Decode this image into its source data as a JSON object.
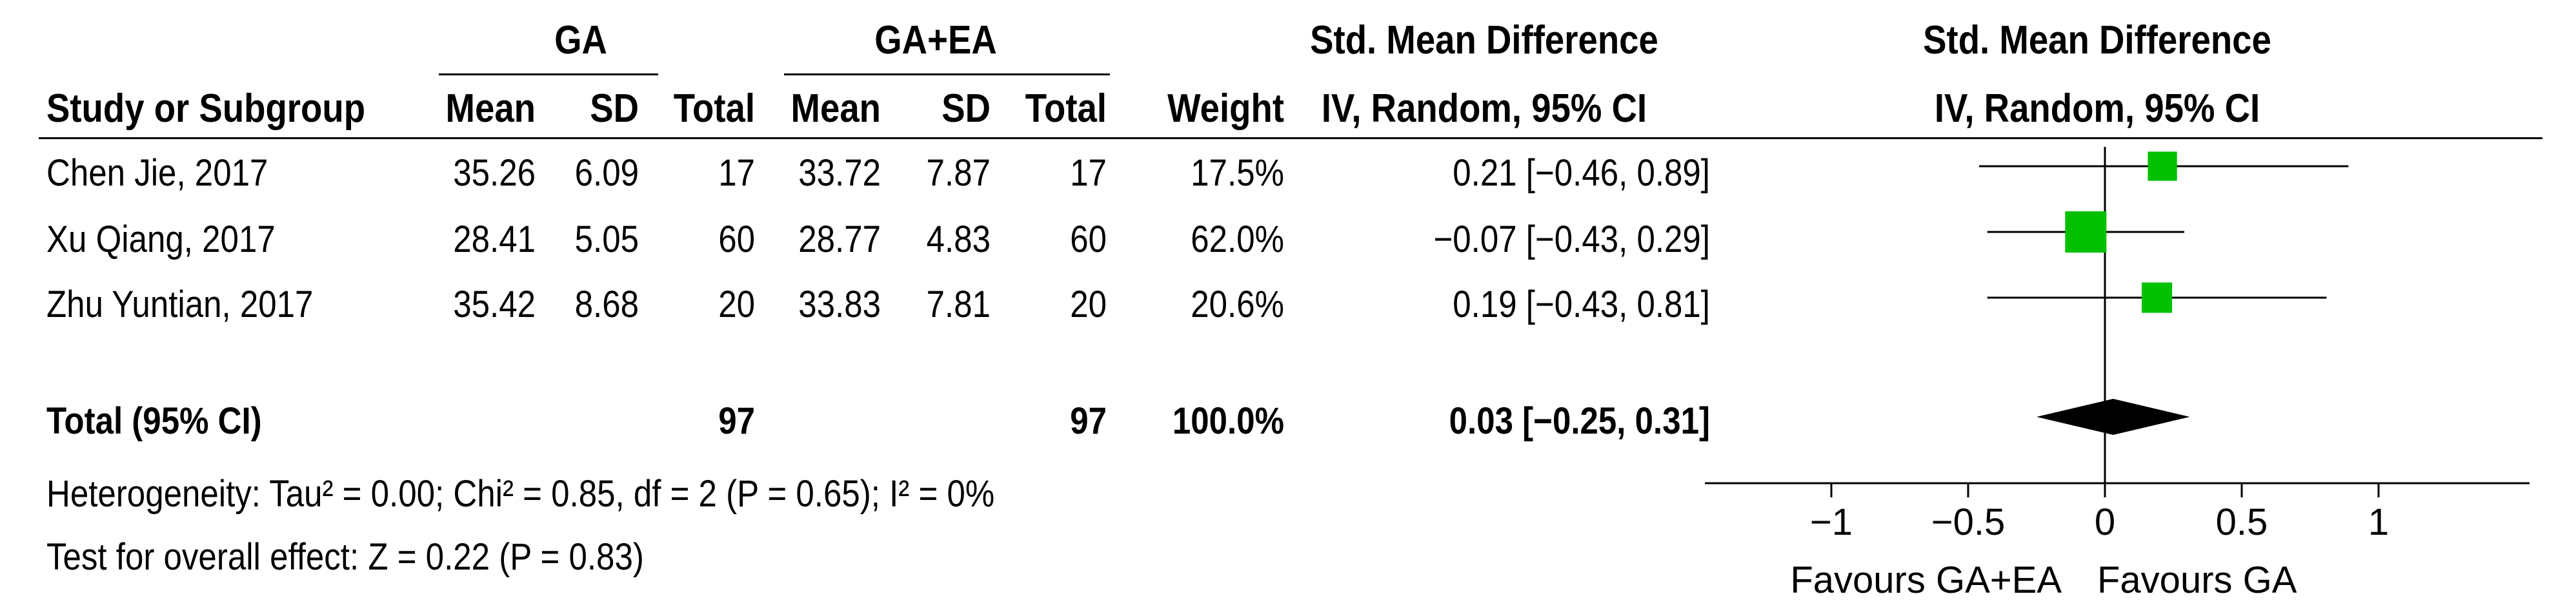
{
  "headers": {
    "group1": "GA",
    "group2": "GA+EA",
    "effect_title": "Std. Mean Difference",
    "effect_subtitle": "IV, Random, 95% CI",
    "plot_title": "Std. Mean Difference",
    "plot_subtitle": "IV, Random, 95% CI",
    "study": "Study or Subgroup",
    "mean1": "Mean",
    "sd1": "SD",
    "total1": "Total",
    "mean2": "Mean",
    "sd2": "SD",
    "total2": "Total",
    "weight": "Weight",
    "ci": "IV, Random, 95% CI"
  },
  "studies": [
    {
      "name": "Chen Jie, 2017",
      "mean1": "35.26",
      "sd1": "6.09",
      "total1": "17",
      "mean2": "33.72",
      "sd2": "7.87",
      "total2": "17",
      "weight": "17.5%",
      "ci": "0.21 [−0.46, 0.89]"
    },
    {
      "name": "Xu Qiang, 2017",
      "mean1": "28.41",
      "sd1": "5.05",
      "total1": "60",
      "mean2": "28.77",
      "sd2": "4.83",
      "total2": "60",
      "weight": "62.0%",
      "ci": "−0.07 [−0.43, 0.29]"
    },
    {
      "name": "Zhu Yuntian, 2017",
      "mean1": "35.42",
      "sd1": "8.68",
      "total1": "20",
      "mean2": "33.83",
      "sd2": "7.81",
      "total2": "20",
      "weight": "20.6%",
      "ci": "0.19 [−0.43, 0.81]"
    }
  ],
  "total": {
    "name": "Total (95% CI)",
    "total1": "97",
    "total2": "97",
    "weight": "100.0%",
    "ci": "0.03 [−0.25, 0.31]"
  },
  "footer": {
    "heterogeneity": "Heterogeneity: Tau² = 0.00; Chi² = 0.85, df = 2 (P = 0.65); I² = 0%",
    "overall": "Test for overall effect: Z = 0.22 (P = 0.83)"
  },
  "chart_data": {
    "type": "forest",
    "title": "Std. Mean Difference",
    "subtitle": "IV, Random, 95% CI",
    "x_range": [
      -1,
      1
    ],
    "x_ticks": [
      -1,
      -0.5,
      0,
      0.5,
      1
    ],
    "x_tick_labels": [
      "−1",
      "−0.5",
      "0",
      "0.5",
      "1"
    ],
    "favours_left": "Favours GA+EA",
    "favours_right": "Favours GA",
    "studies": [
      {
        "name": "Chen Jie, 2017",
        "estimate": 0.21,
        "lower": -0.46,
        "upper": 0.89,
        "weight": 17.5
      },
      {
        "name": "Xu Qiang, 2017",
        "estimate": -0.07,
        "lower": -0.43,
        "upper": 0.29,
        "weight": 62.0
      },
      {
        "name": "Zhu Yuntian, 2017",
        "estimate": 0.19,
        "lower": -0.43,
        "upper": 0.81,
        "weight": 20.6
      }
    ],
    "pooled": {
      "name": "Total (95% CI)",
      "estimate": 0.03,
      "lower": -0.25,
      "upper": 0.31
    },
    "colors": {
      "square": "#00c000",
      "line": "#000000",
      "diamond": "#000000"
    }
  }
}
